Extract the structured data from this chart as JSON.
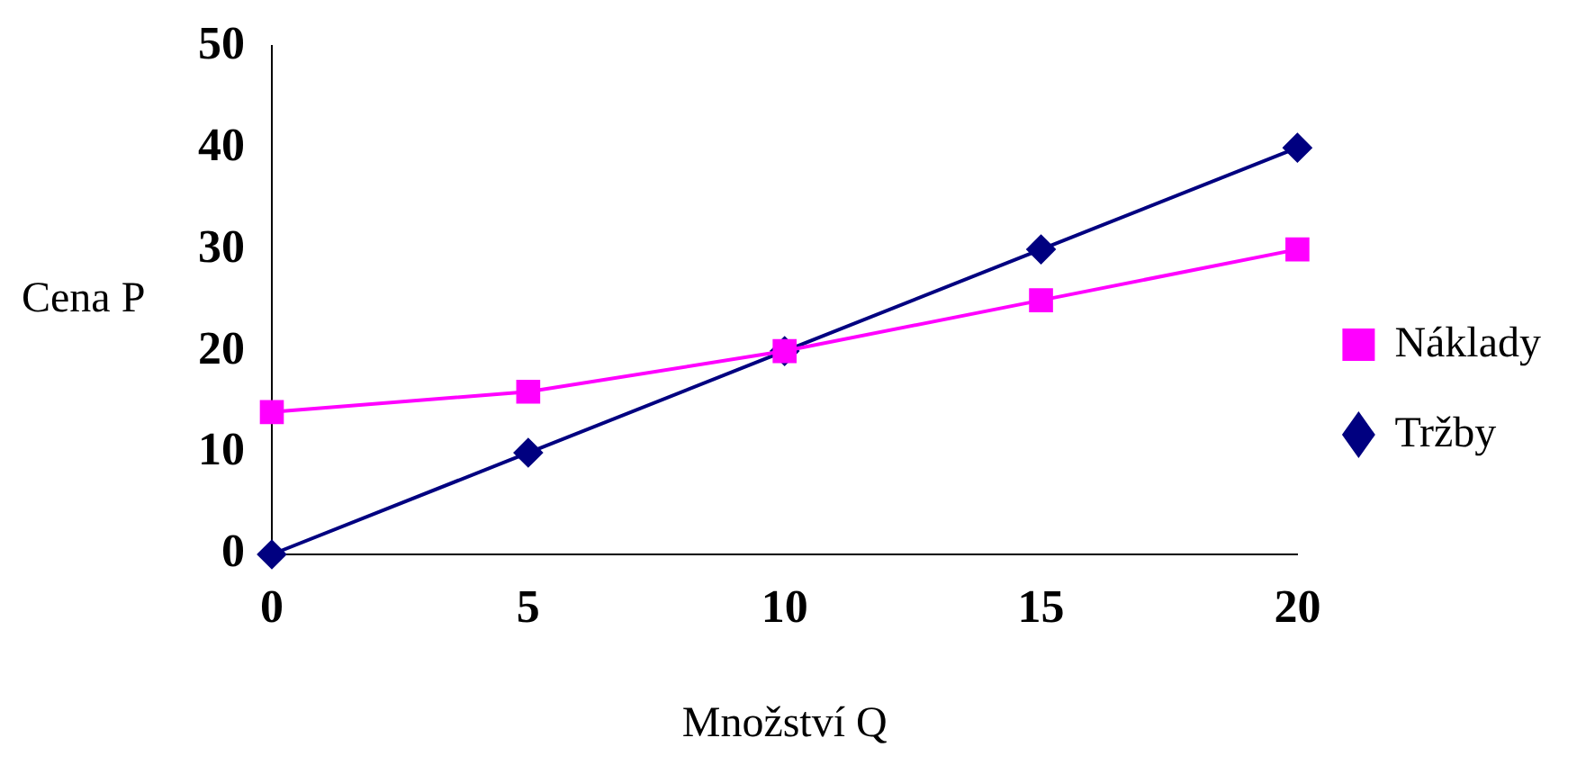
{
  "chart_data": {
    "type": "line",
    "xlabel": "Množství Q",
    "ylabel": "Cena P",
    "x": [
      0,
      5,
      10,
      15,
      20
    ],
    "series": [
      {
        "name": "Tržby",
        "color": "#000080",
        "marker": "diamond",
        "values": [
          0,
          10,
          20,
          30,
          40
        ]
      },
      {
        "name": "Náklady",
        "color": "#ff00ff",
        "marker": "square",
        "values": [
          14,
          16,
          20,
          25,
          30
        ]
      }
    ],
    "xlim": [
      0,
      20
    ],
    "xticks": [
      0,
      5,
      10,
      15,
      20
    ],
    "ylim": [
      0,
      50
    ],
    "yticks": [
      0,
      10,
      20,
      30,
      40,
      50
    ],
    "grid": false,
    "legend": "right",
    "line_style": "solid"
  }
}
